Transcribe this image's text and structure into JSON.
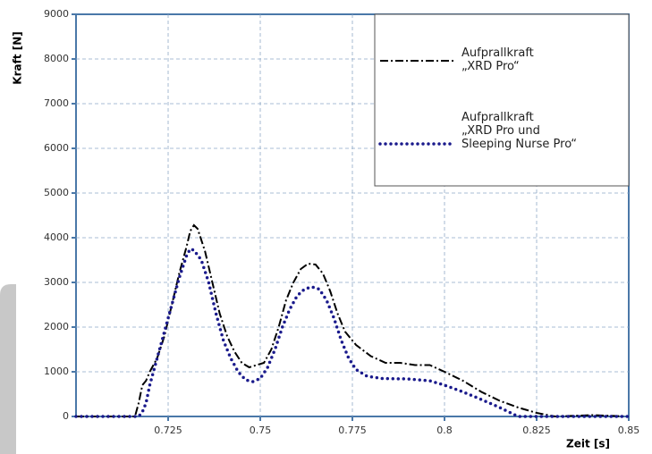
{
  "chart_data": {
    "type": "line",
    "xlabel": "Zeit [s]",
    "ylabel": "Kraft [N]",
    "xlim": [
      0.7,
      0.85
    ],
    "xticks": [
      0.725,
      0.75,
      0.775,
      0.8,
      0.825,
      0.85
    ],
    "ylim": [
      0,
      9000
    ],
    "yticks": [
      0,
      1000,
      2000,
      3000,
      4000,
      5000,
      6000,
      7000,
      8000,
      9000
    ],
    "grid": true,
    "legend": "upper right",
    "series": [
      {
        "name": "Aufprallkraft\n„XRD Pro“",
        "color": "#000000",
        "style": "dashdot",
        "x": [
          0.7,
          0.71,
          0.716,
          0.717,
          0.718,
          0.719,
          0.72,
          0.722,
          0.724,
          0.726,
          0.728,
          0.73,
          0.731,
          0.732,
          0.733,
          0.735,
          0.737,
          0.739,
          0.741,
          0.743,
          0.745,
          0.747,
          0.749,
          0.751,
          0.753,
          0.755,
          0.757,
          0.759,
          0.761,
          0.763,
          0.765,
          0.767,
          0.769,
          0.771,
          0.773,
          0.776,
          0.78,
          0.784,
          0.788,
          0.792,
          0.796,
          0.8,
          0.805,
          0.81,
          0.815,
          0.82,
          0.825,
          0.83,
          0.84,
          0.85
        ],
        "values": [
          0,
          0,
          0,
          300,
          700,
          800,
          1000,
          1300,
          1800,
          2500,
          3200,
          3800,
          4150,
          4280,
          4200,
          3700,
          3000,
          2300,
          1800,
          1450,
          1200,
          1100,
          1150,
          1200,
          1500,
          2000,
          2600,
          3000,
          3300,
          3420,
          3400,
          3200,
          2800,
          2300,
          1900,
          1600,
          1350,
          1200,
          1200,
          1150,
          1150,
          1000,
          800,
          550,
          350,
          200,
          80,
          0,
          30,
          0
        ]
      },
      {
        "name": "Aufprallkraft\n„XRD Pro und\nSleeping Nurse Pro“",
        "color": "#1a1a8c",
        "style": "dotted",
        "x": [
          0.7,
          0.717,
          0.718,
          0.719,
          0.72,
          0.722,
          0.724,
          0.726,
          0.728,
          0.73,
          0.731,
          0.732,
          0.734,
          0.736,
          0.738,
          0.74,
          0.742,
          0.744,
          0.746,
          0.748,
          0.75,
          0.752,
          0.754,
          0.756,
          0.758,
          0.76,
          0.762,
          0.764,
          0.766,
          0.768,
          0.77,
          0.772,
          0.774,
          0.776,
          0.779,
          0.783,
          0.79,
          0.796,
          0.8,
          0.805,
          0.81,
          0.815,
          0.818,
          0.82,
          0.85
        ],
        "values": [
          0,
          0,
          100,
          300,
          700,
          1300,
          1900,
          2500,
          3100,
          3600,
          3750,
          3720,
          3500,
          3000,
          2300,
          1700,
          1300,
          1000,
          820,
          780,
          850,
          1100,
          1500,
          2000,
          2400,
          2700,
          2850,
          2900,
          2850,
          2600,
          2200,
          1700,
          1300,
          1050,
          900,
          850,
          840,
          800,
          700,
          550,
          380,
          200,
          80,
          0,
          0
        ]
      }
    ]
  }
}
